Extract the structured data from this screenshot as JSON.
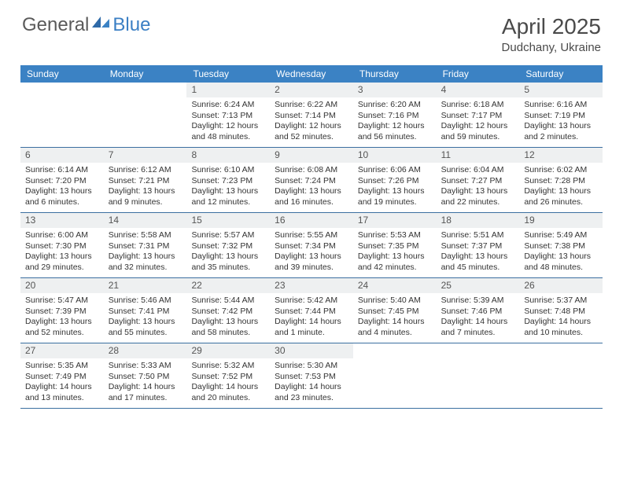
{
  "brand": {
    "part1": "General",
    "part2": "Blue"
  },
  "header": {
    "title": "April 2025",
    "location": "Dudchany, Ukraine"
  },
  "colors": {
    "header_bg": "#3b82c4",
    "daynum_bg": "#eef0f1",
    "week_border": "#3b6fa0",
    "text": "#333333",
    "brand_gray": "#5a5a5a",
    "brand_blue": "#3b7fc4"
  },
  "dayNames": [
    "Sunday",
    "Monday",
    "Tuesday",
    "Wednesday",
    "Thursday",
    "Friday",
    "Saturday"
  ],
  "weeks": [
    [
      {
        "n": "",
        "empty": true
      },
      {
        "n": "",
        "empty": true
      },
      {
        "n": "1",
        "sunrise": "Sunrise: 6:24 AM",
        "sunset": "Sunset: 7:13 PM",
        "daylight": "Daylight: 12 hours and 48 minutes."
      },
      {
        "n": "2",
        "sunrise": "Sunrise: 6:22 AM",
        "sunset": "Sunset: 7:14 PM",
        "daylight": "Daylight: 12 hours and 52 minutes."
      },
      {
        "n": "3",
        "sunrise": "Sunrise: 6:20 AM",
        "sunset": "Sunset: 7:16 PM",
        "daylight": "Daylight: 12 hours and 56 minutes."
      },
      {
        "n": "4",
        "sunrise": "Sunrise: 6:18 AM",
        "sunset": "Sunset: 7:17 PM",
        "daylight": "Daylight: 12 hours and 59 minutes."
      },
      {
        "n": "5",
        "sunrise": "Sunrise: 6:16 AM",
        "sunset": "Sunset: 7:19 PM",
        "daylight": "Daylight: 13 hours and 2 minutes."
      }
    ],
    [
      {
        "n": "6",
        "sunrise": "Sunrise: 6:14 AM",
        "sunset": "Sunset: 7:20 PM",
        "daylight": "Daylight: 13 hours and 6 minutes."
      },
      {
        "n": "7",
        "sunrise": "Sunrise: 6:12 AM",
        "sunset": "Sunset: 7:21 PM",
        "daylight": "Daylight: 13 hours and 9 minutes."
      },
      {
        "n": "8",
        "sunrise": "Sunrise: 6:10 AM",
        "sunset": "Sunset: 7:23 PM",
        "daylight": "Daylight: 13 hours and 12 minutes."
      },
      {
        "n": "9",
        "sunrise": "Sunrise: 6:08 AM",
        "sunset": "Sunset: 7:24 PM",
        "daylight": "Daylight: 13 hours and 16 minutes."
      },
      {
        "n": "10",
        "sunrise": "Sunrise: 6:06 AM",
        "sunset": "Sunset: 7:26 PM",
        "daylight": "Daylight: 13 hours and 19 minutes."
      },
      {
        "n": "11",
        "sunrise": "Sunrise: 6:04 AM",
        "sunset": "Sunset: 7:27 PM",
        "daylight": "Daylight: 13 hours and 22 minutes."
      },
      {
        "n": "12",
        "sunrise": "Sunrise: 6:02 AM",
        "sunset": "Sunset: 7:28 PM",
        "daylight": "Daylight: 13 hours and 26 minutes."
      }
    ],
    [
      {
        "n": "13",
        "sunrise": "Sunrise: 6:00 AM",
        "sunset": "Sunset: 7:30 PM",
        "daylight": "Daylight: 13 hours and 29 minutes."
      },
      {
        "n": "14",
        "sunrise": "Sunrise: 5:58 AM",
        "sunset": "Sunset: 7:31 PM",
        "daylight": "Daylight: 13 hours and 32 minutes."
      },
      {
        "n": "15",
        "sunrise": "Sunrise: 5:57 AM",
        "sunset": "Sunset: 7:32 PM",
        "daylight": "Daylight: 13 hours and 35 minutes."
      },
      {
        "n": "16",
        "sunrise": "Sunrise: 5:55 AM",
        "sunset": "Sunset: 7:34 PM",
        "daylight": "Daylight: 13 hours and 39 minutes."
      },
      {
        "n": "17",
        "sunrise": "Sunrise: 5:53 AM",
        "sunset": "Sunset: 7:35 PM",
        "daylight": "Daylight: 13 hours and 42 minutes."
      },
      {
        "n": "18",
        "sunrise": "Sunrise: 5:51 AM",
        "sunset": "Sunset: 7:37 PM",
        "daylight": "Daylight: 13 hours and 45 minutes."
      },
      {
        "n": "19",
        "sunrise": "Sunrise: 5:49 AM",
        "sunset": "Sunset: 7:38 PM",
        "daylight": "Daylight: 13 hours and 48 minutes."
      }
    ],
    [
      {
        "n": "20",
        "sunrise": "Sunrise: 5:47 AM",
        "sunset": "Sunset: 7:39 PM",
        "daylight": "Daylight: 13 hours and 52 minutes."
      },
      {
        "n": "21",
        "sunrise": "Sunrise: 5:46 AM",
        "sunset": "Sunset: 7:41 PM",
        "daylight": "Daylight: 13 hours and 55 minutes."
      },
      {
        "n": "22",
        "sunrise": "Sunrise: 5:44 AM",
        "sunset": "Sunset: 7:42 PM",
        "daylight": "Daylight: 13 hours and 58 minutes."
      },
      {
        "n": "23",
        "sunrise": "Sunrise: 5:42 AM",
        "sunset": "Sunset: 7:44 PM",
        "daylight": "Daylight: 14 hours and 1 minute."
      },
      {
        "n": "24",
        "sunrise": "Sunrise: 5:40 AM",
        "sunset": "Sunset: 7:45 PM",
        "daylight": "Daylight: 14 hours and 4 minutes."
      },
      {
        "n": "25",
        "sunrise": "Sunrise: 5:39 AM",
        "sunset": "Sunset: 7:46 PM",
        "daylight": "Daylight: 14 hours and 7 minutes."
      },
      {
        "n": "26",
        "sunrise": "Sunrise: 5:37 AM",
        "sunset": "Sunset: 7:48 PM",
        "daylight": "Daylight: 14 hours and 10 minutes."
      }
    ],
    [
      {
        "n": "27",
        "sunrise": "Sunrise: 5:35 AM",
        "sunset": "Sunset: 7:49 PM",
        "daylight": "Daylight: 14 hours and 13 minutes."
      },
      {
        "n": "28",
        "sunrise": "Sunrise: 5:33 AM",
        "sunset": "Sunset: 7:50 PM",
        "daylight": "Daylight: 14 hours and 17 minutes."
      },
      {
        "n": "29",
        "sunrise": "Sunrise: 5:32 AM",
        "sunset": "Sunset: 7:52 PM",
        "daylight": "Daylight: 14 hours and 20 minutes."
      },
      {
        "n": "30",
        "sunrise": "Sunrise: 5:30 AM",
        "sunset": "Sunset: 7:53 PM",
        "daylight": "Daylight: 14 hours and 23 minutes."
      },
      {
        "n": "",
        "empty": true
      },
      {
        "n": "",
        "empty": true
      },
      {
        "n": "",
        "empty": true
      }
    ]
  ]
}
